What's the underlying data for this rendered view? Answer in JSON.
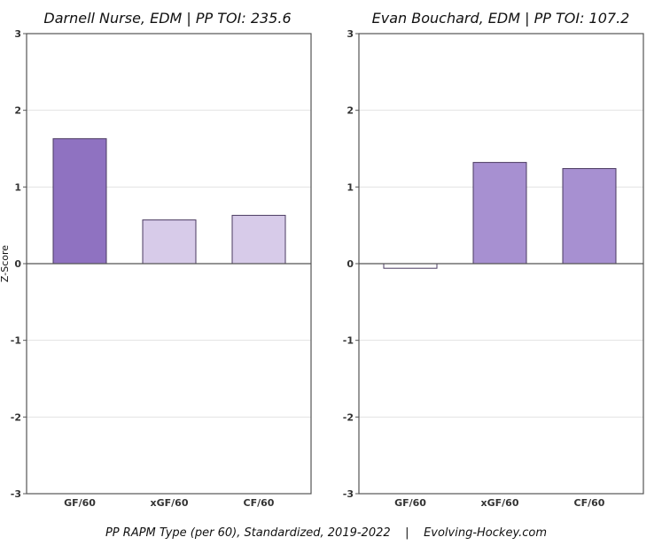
{
  "footer": "PP RAPM Type (per 60), Standardized, 2019-2022    |    Evolving-Hockey.com",
  "chart_data": [
    {
      "type": "bar",
      "title": "Darnell Nurse, EDM  |  PP TOI: 235.6",
      "ylabel": "Z-Score",
      "xlabel": "",
      "categories": [
        "GF/60",
        "xGF/60",
        "CF/60"
      ],
      "values": [
        1.63,
        0.57,
        0.63
      ],
      "colors": [
        "#8f72c1",
        "#d7cbe9",
        "#d7cbe9"
      ],
      "ylim": [
        -3,
        3
      ],
      "yticks": [
        3,
        2,
        1,
        0,
        -1,
        -2,
        -3
      ],
      "grid": true
    },
    {
      "type": "bar",
      "title": "Evan Bouchard, EDM  |  PP TOI: 107.2",
      "ylabel": "",
      "xlabel": "",
      "categories": [
        "GF/60",
        "xGF/60",
        "CF/60"
      ],
      "values": [
        -0.06,
        1.32,
        1.24
      ],
      "colors": [
        "#ffffff",
        "#a790d1",
        "#a790d1"
      ],
      "ylim": [
        -3,
        3
      ],
      "yticks": [
        3,
        2,
        1,
        0,
        -1,
        -2,
        -3
      ],
      "grid": true
    }
  ]
}
